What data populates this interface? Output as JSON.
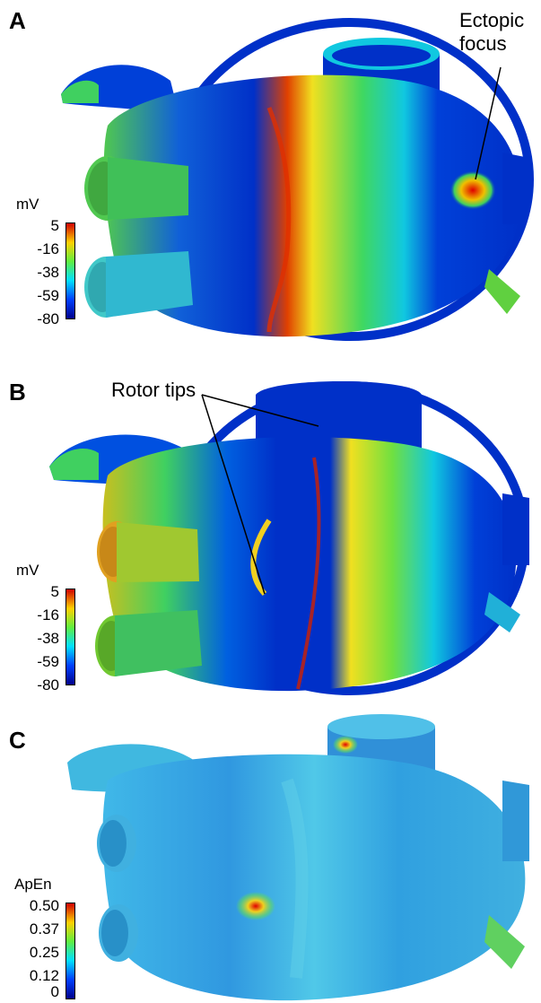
{
  "panels": [
    {
      "letter": "A",
      "annotation": "Ectopic\nfocus",
      "colorbar_unit": "mV",
      "ticks": [
        "5",
        "-16",
        "-38",
        "-59",
        "-80"
      ]
    },
    {
      "letter": "B",
      "annotation": "Rotor tips",
      "colorbar_unit": "mV",
      "ticks": [
        "5",
        "-16",
        "-38",
        "-59",
        "-80"
      ]
    },
    {
      "letter": "C",
      "annotation": "",
      "colorbar_unit": "ApEn",
      "ticks": [
        "0.50",
        "0.37",
        "0.25",
        "0.12",
        "0"
      ]
    }
  ],
  "colors": {
    "jet_low": "#0020c8",
    "jet_cyan": "#00d8e8",
    "jet_green": "#3ee040",
    "jet_yellow": "#f0e020",
    "jet_high": "#d80000"
  }
}
